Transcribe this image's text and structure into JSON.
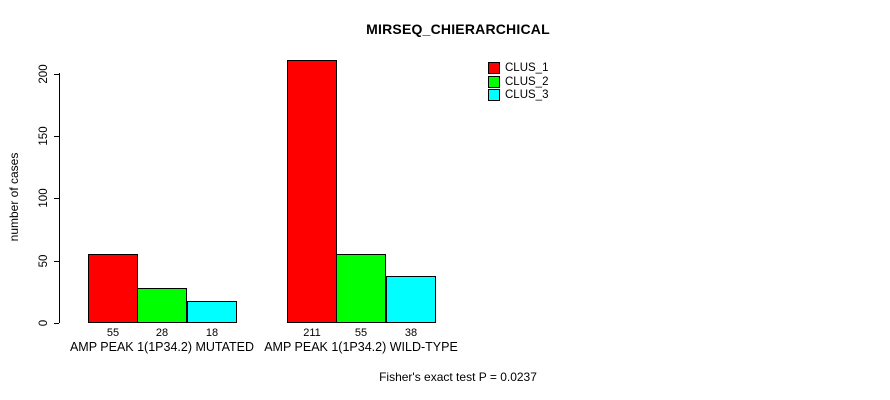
{
  "chart_data": {
    "type": "bar",
    "title": "MIRSEQ_CHIERARCHICAL",
    "ylabel": "number of cases",
    "xlabel": "",
    "ylim": [
      0,
      200
    ],
    "yticks": [
      0,
      50,
      100,
      150,
      200
    ],
    "grid": false,
    "legend_position": "top-right-inside",
    "bar_value_labels_shown": true,
    "categories": [
      "AMP PEAK 1(1P34.2) MUTATED",
      "AMP PEAK 1(1P34.2) WILD-TYPE"
    ],
    "series": [
      {
        "name": "CLUS_1",
        "color": "#FF0000",
        "values": [
          55,
          211
        ]
      },
      {
        "name": "CLUS_2",
        "color": "#00FF00",
        "values": [
          28,
          55
        ]
      },
      {
        "name": "CLUS_3",
        "color": "#00FFFF",
        "values": [
          18,
          38
        ]
      }
    ],
    "annotation": "Fisher's exact test P = 0.0237"
  }
}
